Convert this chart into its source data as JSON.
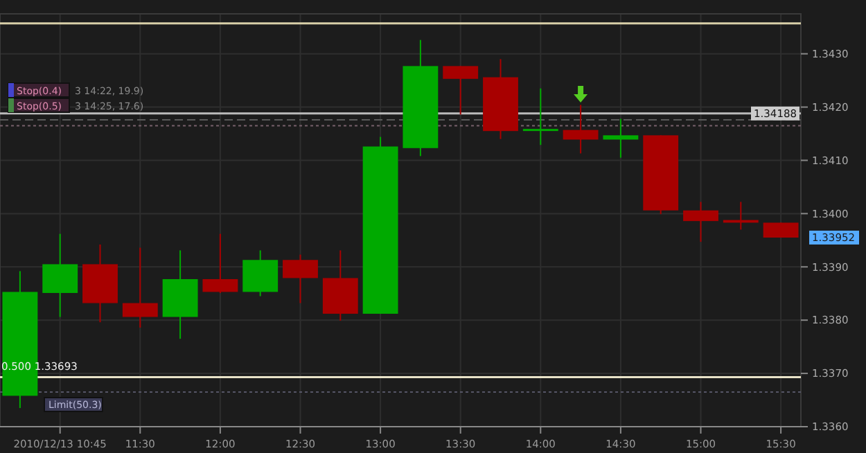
{
  "chart_data": {
    "type": "candlestick",
    "categories": [
      null,
      "2010/12/13 10:45",
      null,
      "11:30",
      null,
      "12:00",
      null,
      "12:30",
      null,
      "13:00",
      null,
      "13:30",
      null,
      "14:00",
      null,
      "14:30",
      null,
      "15:00",
      null,
      "15:30"
    ],
    "ohlc": [
      [
        1.33658,
        1.33892,
        1.33635,
        1.33853
      ],
      [
        1.33851,
        1.33962,
        1.33806,
        1.33905
      ],
      [
        1.33905,
        1.33942,
        1.33796,
        1.33832
      ],
      [
        1.33832,
        1.33936,
        1.33786,
        1.33806
      ],
      [
        1.33806,
        1.33931,
        1.33765,
        1.33877
      ],
      [
        1.33877,
        1.33962,
        1.33851,
        1.33853
      ],
      [
        1.33853,
        1.33931,
        1.33845,
        1.33913
      ],
      [
        1.33913,
        1.33923,
        1.33832,
        1.33879
      ],
      [
        1.33879,
        1.33931,
        1.33799,
        1.33812
      ],
      [
        1.33812,
        1.34144,
        1.33812,
        1.34126
      ],
      [
        1.34123,
        1.34326,
        1.34108,
        1.34277
      ],
      [
        1.34277,
        1.34277,
        1.34186,
        1.34253
      ],
      [
        1.34256,
        1.3429,
        1.3414,
        1.34155
      ],
      [
        1.34157,
        1.34235,
        1.34129,
        1.34157
      ],
      [
        1.34157,
        1.34204,
        1.34113,
        1.34139
      ],
      [
        1.34139,
        1.34178,
        1.34105,
        1.34147
      ],
      [
        1.34147,
        1.34147,
        1.33999,
        1.34006
      ],
      [
        1.34006,
        1.34022,
        1.33947,
        1.33986
      ],
      [
        1.33988,
        1.34022,
        1.3397,
        1.33983
      ],
      [
        1.33983,
        1.33983,
        1.33955,
        1.33955
      ]
    ],
    "ylim": [
      1.336,
      1.34375
    ],
    "yticks": [
      {
        "value": 1.336,
        "label": "1.3360"
      },
      {
        "value": 1.337,
        "label": "1.3370"
      },
      {
        "value": 1.338,
        "label": "1.3380"
      },
      {
        "value": 1.339,
        "label": "1.3390"
      },
      {
        "value": 1.34,
        "label": "1.3400"
      },
      {
        "value": 1.341,
        "label": "1.3410"
      },
      {
        "value": 1.342,
        "label": "1.3420"
      },
      {
        "value": 1.343,
        "label": "1.3430"
      }
    ],
    "grid": true,
    "ref_lines": [
      {
        "axis": "y",
        "value": 1.34357,
        "color": "#d8cfa8"
      },
      {
        "axis": "y",
        "value": 1.34188,
        "label": "1.34188",
        "color": "#bbbbbb"
      },
      {
        "axis": "y",
        "value": 1.34176,
        "label": "Stop(0.4)",
        "color": "#5a5a5a",
        "line_style": "dashed"
      },
      {
        "axis": "y",
        "value": 1.34165,
        "label": "Stop(0.5)",
        "color": "#77606a",
        "line_style": "dotted"
      },
      {
        "axis": "y",
        "value": 1.33693,
        "label": "0.500 1.33693",
        "color": "#e8e2c8"
      },
      {
        "axis": "y",
        "value": 1.33665,
        "label": "Limit(50.3)",
        "color": "#555566",
        "line_style": "dotted"
      }
    ],
    "annotations": [
      "3 14:22, 19.9)",
      "3 14:25, 17.6)",
      "1.33952"
    ]
  }
}
